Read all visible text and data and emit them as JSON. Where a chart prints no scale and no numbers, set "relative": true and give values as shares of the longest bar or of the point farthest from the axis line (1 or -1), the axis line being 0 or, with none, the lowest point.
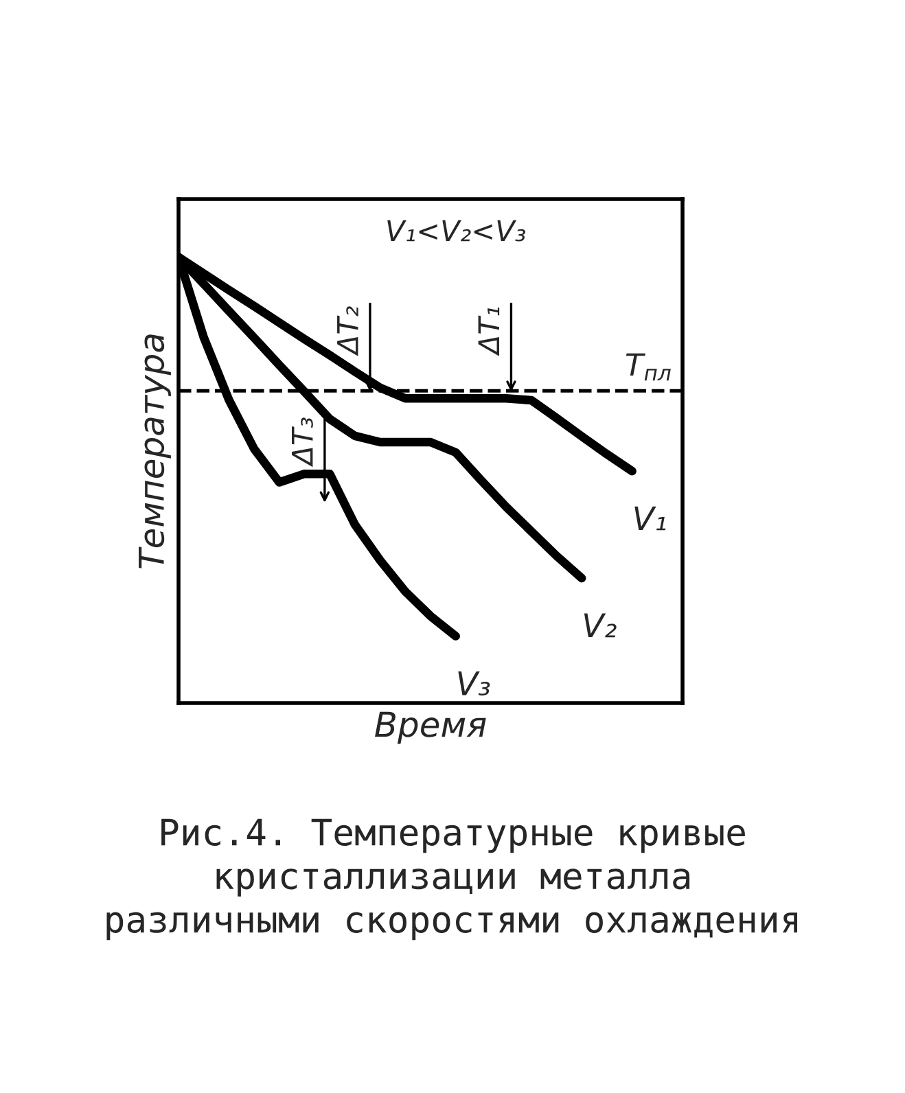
{
  "chart_data": {
    "type": "line",
    "relative": true,
    "xlabel": "Время",
    "ylabel": "Температура",
    "tick_labels": false,
    "legend": false,
    "marker": "none",
    "line_style": "solid",
    "categories": [
      null,
      null,
      null,
      null,
      null,
      null,
      null,
      null,
      null,
      null,
      null,
      null,
      null,
      null,
      null,
      null,
      null,
      null,
      null
    ],
    "series": [
      {
        "name": "V₁",
        "color": "#000000",
        "values": [
          1.0,
          0.963,
          0.926,
          0.89,
          0.853,
          0.816,
          0.78,
          0.743,
          0.707,
          0.683,
          0.683,
          0.683,
          0.683,
          0.683,
          0.679,
          0.639,
          0.598,
          0.558,
          0.52
        ]
      },
      {
        "name": "V₂",
        "color": "#000000",
        "values": [
          1.0,
          0.94,
          0.879,
          0.819,
          0.758,
          0.698,
          0.637,
          0.599,
          0.585,
          0.585,
          0.585,
          0.562,
          0.5,
          0.44,
          0.385,
          0.33,
          0.28,
          null,
          null
        ]
      },
      {
        "name": "V₃",
        "color": "#000000",
        "values": [
          1.0,
          0.82,
          0.68,
          0.57,
          0.495,
          0.514,
          0.514,
          0.4,
          0.32,
          0.25,
          0.195,
          0.15,
          null,
          null,
          null,
          null,
          null,
          null,
          null
        ]
      }
    ],
    "ref_lines": [
      {
        "axis": "y",
        "value": 0.7,
        "label": "T$_{пл}$",
        "color": "#000000",
        "line_style": "dashed"
      }
    ],
    "annotations": [
      {
        "text": "V₁<V₂<V₃"
      },
      "ΔT₁",
      "ΔT₂",
      "ΔT₃",
      "Рис.4. Температурные кривые\nкристаллизации металла\nразличными скоростями охлаждения"
    ]
  }
}
